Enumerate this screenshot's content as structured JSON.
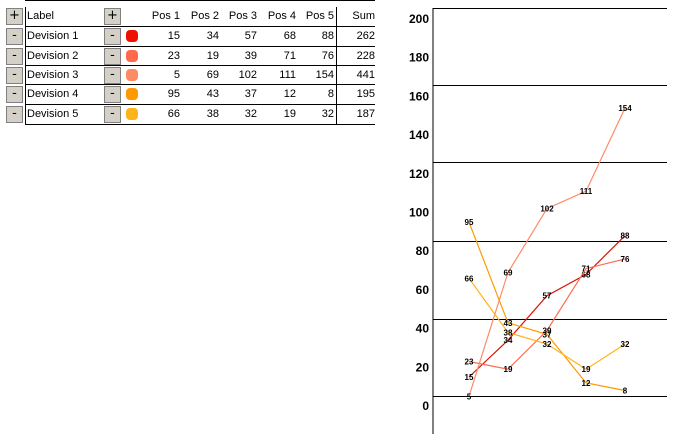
{
  "table": {
    "add_symbol": "+",
    "remove_symbol": "-",
    "header": {
      "label": "Label",
      "columns": [
        "Pos 1",
        "Pos 2",
        "Pos 3",
        "Pos 4",
        "Pos 5"
      ],
      "sum": "Sum"
    },
    "rows": [
      {
        "label": "Devision 1",
        "color": "#ee1100",
        "values": [
          "15",
          "34",
          "57",
          "68",
          "88"
        ],
        "sum": "262"
      },
      {
        "label": "Devision 2",
        "color": "#ff6a4d",
        "values": [
          "23",
          "19",
          "39",
          "71",
          "76"
        ],
        "sum": "228"
      },
      {
        "label": "Devision 3",
        "color": "#ff8a66",
        "values": [
          "5",
          "69",
          "102",
          "111",
          "154"
        ],
        "sum": "441"
      },
      {
        "label": "Devision 4",
        "color": "#ff9900",
        "values": [
          "95",
          "43",
          "37",
          "12",
          "8"
        ],
        "sum": "195"
      },
      {
        "label": "Devision 5",
        "color": "#ffb31a",
        "values": [
          "66",
          "38",
          "32",
          "19",
          "32"
        ],
        "sum": "187"
      }
    ]
  },
  "chart_data": {
    "type": "line",
    "x": [
      1,
      2,
      3,
      4,
      5
    ],
    "ylim": [
      0,
      200
    ],
    "yticks": [
      "0",
      "20",
      "40",
      "60",
      "80",
      "100",
      "120",
      "140",
      "160",
      "180",
      "200"
    ],
    "series": [
      {
        "color": "#dd1100",
        "values": [
          15,
          34,
          57,
          68,
          88
        ]
      },
      {
        "color": "#ff6a4d",
        "values": [
          23,
          19,
          39,
          71,
          76
        ]
      },
      {
        "color": "#ff8a66",
        "values": [
          5,
          69,
          102,
          111,
          154
        ]
      },
      {
        "color": "#ff9900",
        "values": [
          95,
          43,
          37,
          12,
          8
        ]
      },
      {
        "color": "#ffb31a",
        "values": [
          66,
          38,
          32,
          19,
          32
        ]
      }
    ]
  }
}
